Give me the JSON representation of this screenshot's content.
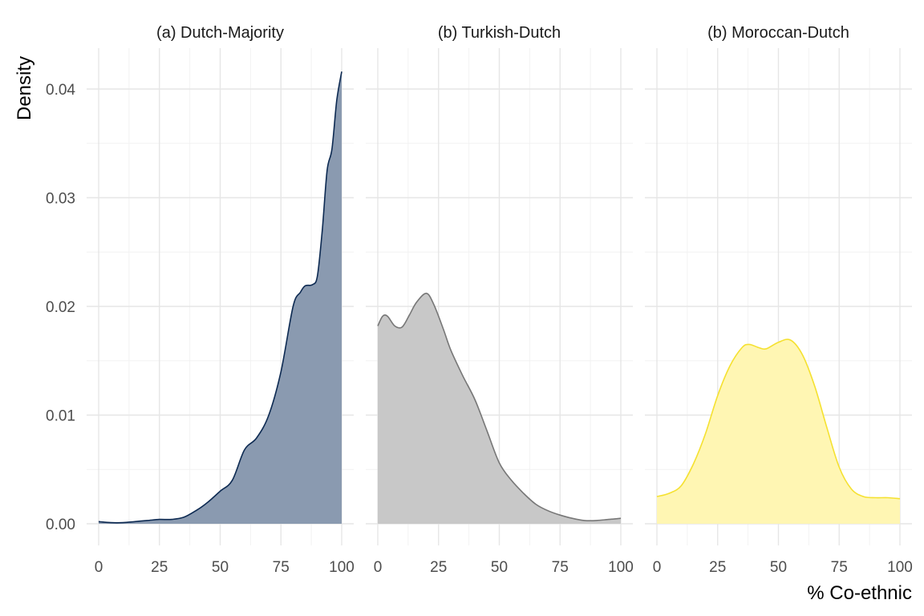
{
  "chart_data": {
    "type": "area",
    "ylabel": "Density",
    "xlabel": "% Co-ethnic",
    "xlim": [
      0,
      100
    ],
    "ylim": [
      0,
      0.042
    ],
    "x_ticks": [
      "0",
      "25",
      "50",
      "75",
      "100"
    ],
    "y_ticks": [
      "0.00",
      "0.01",
      "0.02",
      "0.03",
      "0.04"
    ],
    "y_tick_values": [
      0,
      0.01,
      0.02,
      0.03,
      0.04
    ],
    "x_tick_values": [
      0,
      25,
      50,
      75,
      100
    ],
    "grid": true,
    "facets": [
      {
        "name": "(a) Dutch-Majority",
        "fill": "#8a9ab0",
        "stroke": "#0d2a52",
        "x": [
          0,
          5,
          10,
          15,
          20,
          25,
          30,
          35,
          40,
          45,
          50,
          55,
          60,
          65,
          70,
          75,
          80,
          83,
          85,
          88,
          90,
          92,
          94,
          96,
          98,
          100
        ],
        "y": [
          0.0002,
          0.0001,
          0.0001,
          0.0002,
          0.0003,
          0.0004,
          0.0004,
          0.0006,
          0.0012,
          0.002,
          0.003,
          0.004,
          0.0068,
          0.0079,
          0.01,
          0.014,
          0.02,
          0.0213,
          0.0219,
          0.022,
          0.0228,
          0.027,
          0.0325,
          0.0345,
          0.039,
          0.0416
        ]
      },
      {
        "name": "(b) Turkish-Dutch",
        "fill": "#c8c8c8",
        "stroke": "#777777",
        "x": [
          0,
          2,
          4,
          7,
          10,
          13,
          16,
          20,
          23,
          27,
          30,
          35,
          40,
          45,
          50,
          55,
          60,
          65,
          70,
          75,
          80,
          85,
          90,
          95,
          100
        ],
        "y": [
          0.0182,
          0.0191,
          0.0191,
          0.0182,
          0.0181,
          0.0192,
          0.0204,
          0.0212,
          0.0202,
          0.0179,
          0.016,
          0.0136,
          0.0114,
          0.0085,
          0.0056,
          0.004,
          0.0028,
          0.0018,
          0.0012,
          0.0008,
          0.0005,
          0.0003,
          0.0003,
          0.0004,
          0.0005
        ]
      },
      {
        "name": "(b) Moroccan-Dutch",
        "fill": "#fff6b3",
        "stroke": "#f5e130",
        "x": [
          0,
          5,
          10,
          15,
          20,
          25,
          30,
          35,
          38,
          42,
          45,
          50,
          55,
          60,
          65,
          70,
          75,
          80,
          85,
          90,
          95,
          100
        ],
        "y": [
          0.0025,
          0.0028,
          0.0035,
          0.0055,
          0.0083,
          0.0118,
          0.0145,
          0.0162,
          0.0165,
          0.0162,
          0.0161,
          0.0167,
          0.0169,
          0.0155,
          0.0126,
          0.0088,
          0.0052,
          0.0032,
          0.0025,
          0.0024,
          0.0024,
          0.0023
        ]
      }
    ]
  }
}
